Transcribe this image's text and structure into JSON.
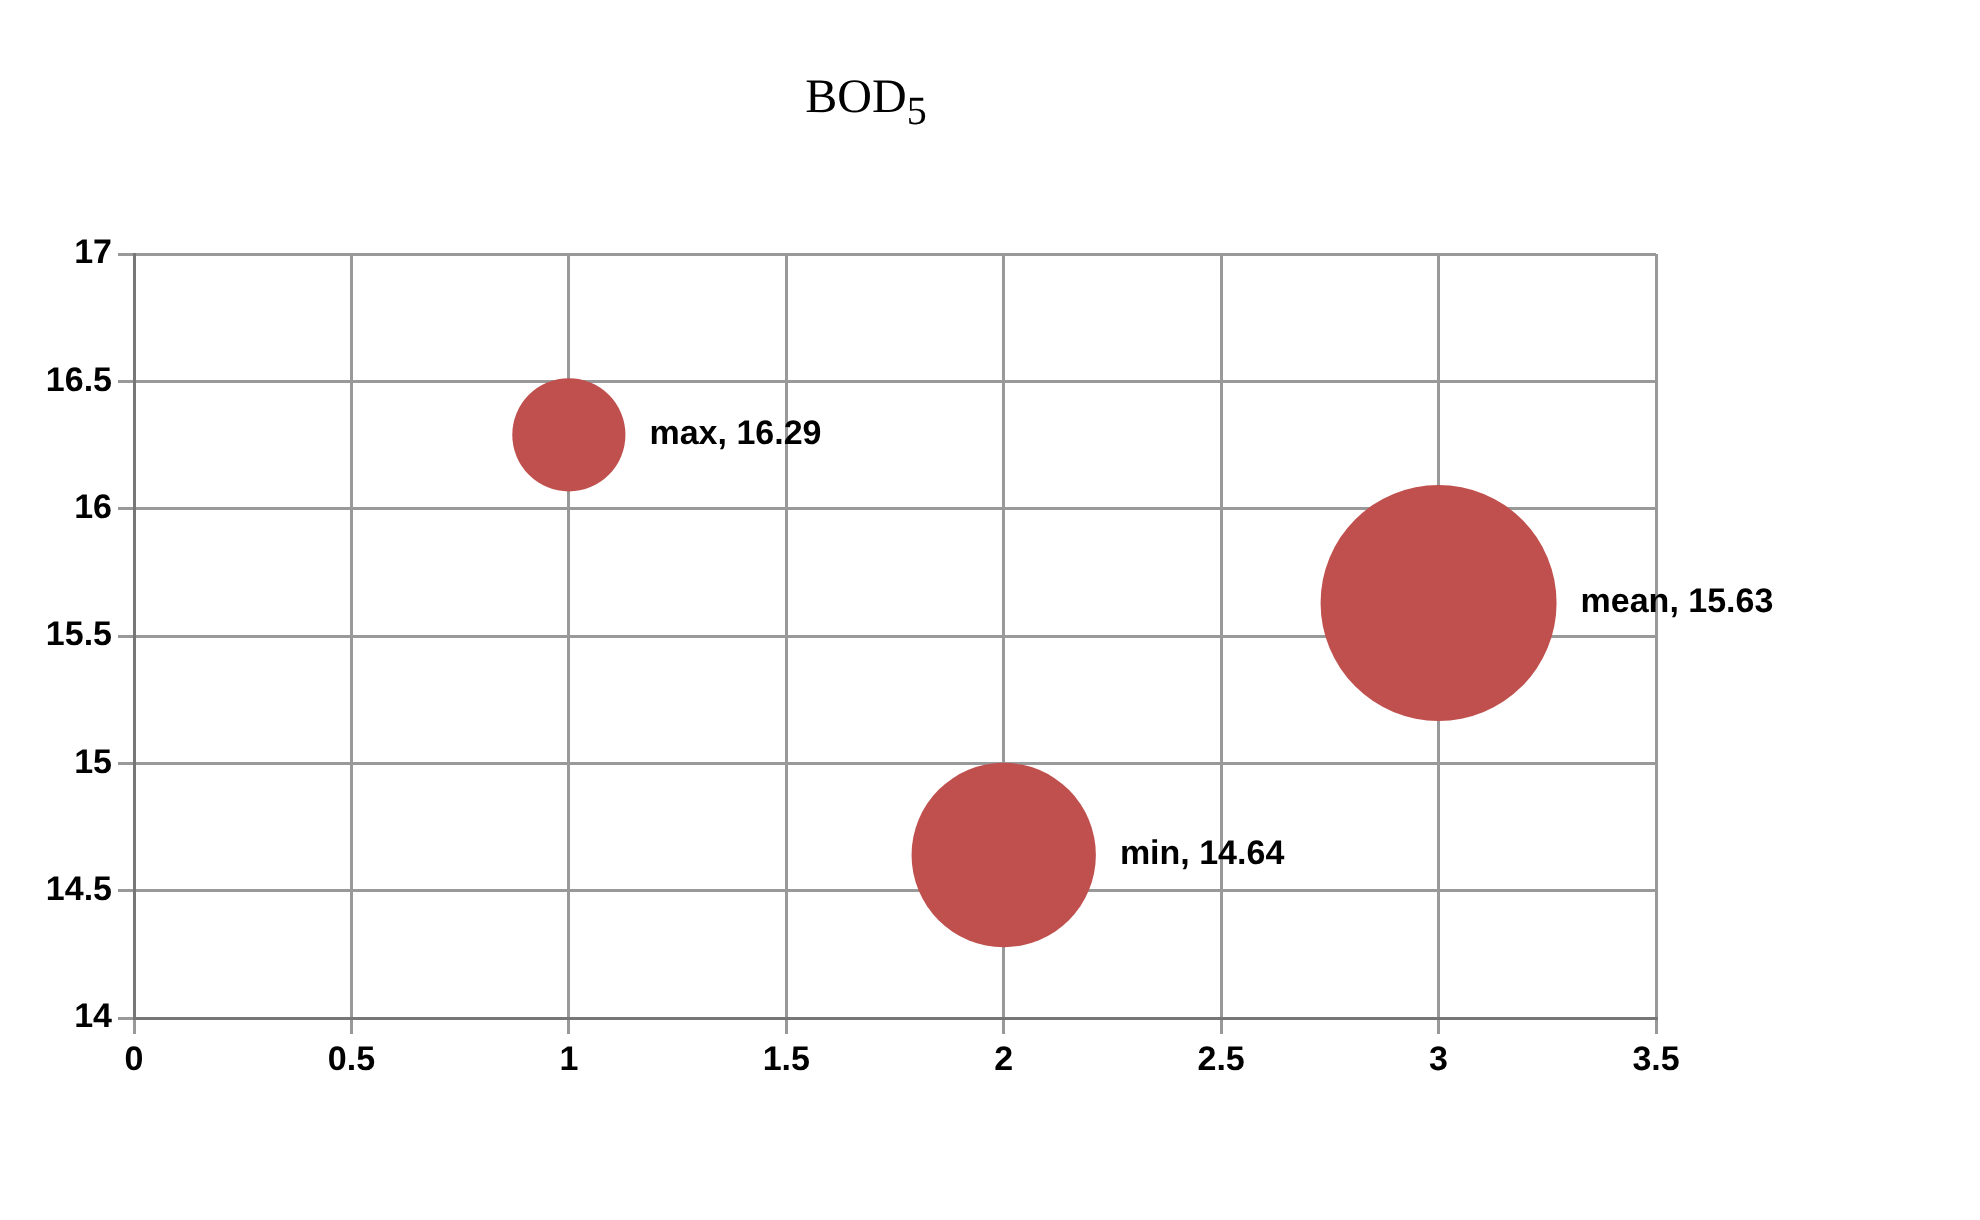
{
  "chart_data": {
    "type": "bubble",
    "title": "BOD$_{5}$",
    "x": [
      1,
      2,
      3
    ],
    "values": [
      16.29,
      14.64,
      15.63
    ],
    "sizes": [
      0.23,
      0.61,
      1
    ],
    "color": "#c0504d",
    "value_labels": [
      "max, 16.29",
      "min, 14.64",
      "mean, 15.63"
    ],
    "xlim": [
      0,
      3.5
    ],
    "xticks": [
      0,
      0.5,
      1,
      1.5,
      2,
      2.5,
      3,
      3.5
    ],
    "ylim": [
      14,
      17
    ],
    "yticks": [
      14,
      14.5,
      15,
      15.5,
      16,
      16.5,
      17
    ],
    "grid": true
  }
}
